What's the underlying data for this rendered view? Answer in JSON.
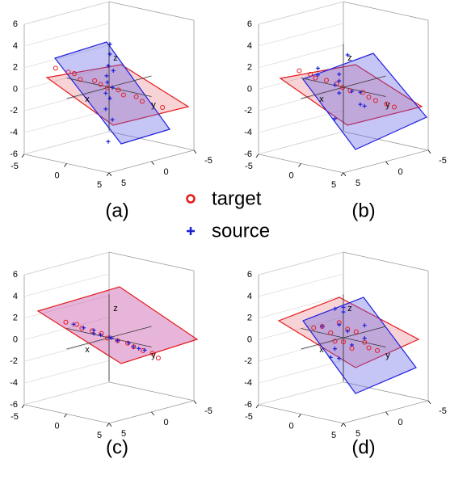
{
  "chart_data": [
    {
      "type": "scatter3d",
      "label": "(a)",
      "xlabel": "x",
      "ylabel": "y",
      "zlabel": "z",
      "xlim": [
        -5,
        5
      ],
      "ylim": [
        -5,
        5
      ],
      "zlim": [
        -6,
        6
      ],
      "xticks": [
        -5,
        0,
        5
      ],
      "yticks": [
        -5,
        0,
        5
      ],
      "zticks": [
        -6,
        -4,
        -2,
        0,
        2,
        4,
        6
      ],
      "series": [
        {
          "name": "target",
          "color": "#e41a1c",
          "x": [
            -6,
            -5,
            -4,
            -3,
            -2,
            -1,
            0,
            1,
            2,
            3,
            4,
            6
          ],
          "y": [
            0.3,
            -0.2,
            0.1,
            0.4,
            -0.3,
            0,
            0.2,
            -0.1,
            0.3,
            -0.2,
            0.1,
            -0.3
          ],
          "z": [
            0.8,
            0.5,
            0.6,
            0.3,
            0.2,
            0.1,
            0,
            -0.1,
            -0.3,
            -0.4,
            -0.6,
            -0.9
          ]
        },
        {
          "name": "source",
          "color": "#1f1fd6",
          "x": [
            0,
            0.2,
            -0.2,
            0.1,
            -0.1,
            0.3,
            0,
            -0.3,
            0.2,
            0,
            -0.1,
            0.1
          ],
          "y": [
            0.1,
            -0.2,
            0.2,
            0,
            0.3,
            -0.1,
            0.2,
            0,
            -0.3,
            0.1,
            -0.2,
            0
          ],
          "z": [
            -5,
            -3,
            -2,
            -1,
            -0.5,
            0,
            0.5,
            1,
            1.5,
            2,
            3,
            4
          ]
        }
      ]
    },
    {
      "type": "scatter3d",
      "label": "(b)",
      "xlabel": "x",
      "ylabel": "y",
      "zlabel": "z",
      "xlim": [
        -5,
        5
      ],
      "ylim": [
        -5,
        5
      ],
      "zlim": [
        -6,
        6
      ],
      "xticks": [
        -5,
        0,
        5
      ],
      "yticks": [
        -5,
        0,
        5
      ],
      "zticks": [
        -6,
        -4,
        -2,
        0,
        2,
        4,
        6
      ],
      "series": [
        {
          "color": "#e41a1c",
          "x": [
            -5,
            -4,
            -3,
            -2,
            -1,
            0,
            1,
            2,
            3,
            4,
            5,
            6
          ],
          "y": [
            0.2,
            -0.1,
            0.3,
            0,
            -0.2,
            0.1,
            0.2,
            -0.3,
            0,
            0.2,
            -0.1,
            0
          ],
          "z": [
            0.7,
            0.5,
            0.4,
            0.3,
            0.1,
            0,
            -0.1,
            -0.2,
            -0.4,
            -0.5,
            -0.7,
            -0.8
          ]
        },
        {
          "color": "#1f1fd6",
          "x": [
            -2,
            -1.5,
            -1,
            -0.5,
            0,
            0.5,
            1,
            1.5,
            2,
            -1,
            0.5,
            1
          ],
          "y": [
            1,
            -1,
            2,
            0,
            -2,
            1,
            -1,
            0.5,
            -0.5,
            -1.5,
            1.5,
            2
          ],
          "z": [
            1,
            -1,
            2,
            0.5,
            -2,
            1.5,
            -0.5,
            0,
            -1.5,
            2.5,
            -2.5,
            0.8
          ]
        }
      ]
    },
    {
      "type": "scatter3d",
      "label": "(c)",
      "xlabel": "x",
      "ylabel": "y",
      "zlabel": "z",
      "xlim": [
        -5,
        5
      ],
      "ylim": [
        -5,
        5
      ],
      "zlim": [
        -6,
        6
      ],
      "xticks": [
        -5,
        0,
        5
      ],
      "yticks": [
        -5,
        0,
        5
      ],
      "zticks": [
        -6,
        -4,
        -2,
        0,
        2,
        4,
        6
      ],
      "series": [
        {
          "color": "#e41a1c",
          "x": [
            -5,
            -4,
            -3,
            -2,
            -1,
            0,
            1,
            2,
            3,
            4,
            5,
            6
          ],
          "y": [
            0.1,
            -0.2,
            0.2,
            0,
            -0.1,
            0.2,
            0,
            -0.2,
            0.1,
            0,
            -0.1,
            0.2
          ],
          "z": [
            0.6,
            0.5,
            0.4,
            0.3,
            0.2,
            0,
            -0.1,
            -0.2,
            -0.3,
            -0.5,
            -0.6,
            -0.8
          ]
        },
        {
          "color": "#1f1fd6",
          "x": [
            -4,
            -3,
            -2,
            -1.5,
            -1,
            0,
            0.5,
            1,
            2,
            3,
            3.5,
            4
          ],
          "y": [
            0.2,
            0,
            -0.2,
            0.3,
            0,
            -0.1,
            0.2,
            0,
            -0.3,
            0.1,
            0,
            -0.2
          ],
          "z": [
            0.6,
            0.4,
            0.3,
            0.2,
            0.1,
            0,
            0.1,
            -0.1,
            -0.2,
            -0.3,
            -0.4,
            -0.5
          ]
        }
      ]
    },
    {
      "type": "scatter3d",
      "label": "(d)",
      "xlabel": "x",
      "ylabel": "y",
      "zlabel": "z",
      "xlim": [
        -5,
        5
      ],
      "ylim": [
        -5,
        5
      ],
      "zlim": [
        -6,
        6
      ],
      "xticks": [
        -5,
        0,
        5
      ],
      "yticks": [
        -5,
        0,
        5
      ],
      "zticks": [
        -6,
        -4,
        -2,
        0,
        2,
        4,
        6
      ],
      "series": [
        {
          "color": "#e41a1c",
          "x": [
            -3,
            -2,
            -1.5,
            -1,
            -0.5,
            0,
            0.5,
            1,
            1.5,
            2,
            3,
            4
          ],
          "y": [
            0.5,
            -0.5,
            1,
            0,
            -1,
            0.5,
            -0.5,
            1,
            0,
            -1,
            0.5,
            0
          ],
          "z": [
            0.5,
            0,
            1,
            -0.5,
            0.5,
            1.5,
            -1,
            0,
            0.8,
            -0.8,
            0.2,
            -0.5
          ]
        },
        {
          "color": "#1f1fd6",
          "x": [
            -1.5,
            -1,
            -0.5,
            0,
            0.5,
            1,
            1.5,
            -1,
            0,
            1,
            0.5,
            -0.5
          ],
          "y": [
            1,
            -1,
            0.5,
            -0.5,
            1,
            0,
            -1,
            0,
            1.5,
            -1.5,
            0.5,
            0
          ],
          "z": [
            1,
            2,
            -1,
            0.5,
            1.5,
            -0.5,
            0,
            2.5,
            -1.5,
            1,
            3,
            -2
          ]
        }
      ]
    }
  ]
}
